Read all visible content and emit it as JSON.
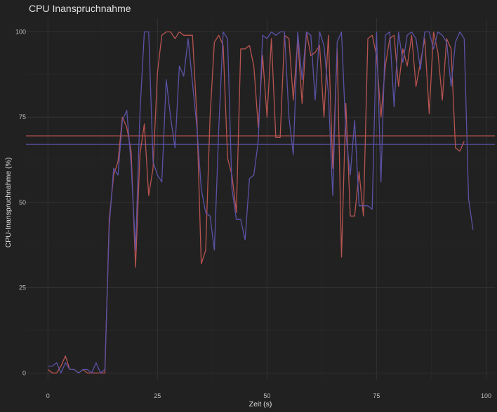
{
  "chart_data": {
    "type": "line",
    "title": "CPU Inanspruchnahme",
    "xlabel": "Zeit (s)",
    "ylabel": "CPU-Inanspruchnahme (%)",
    "xlim": [
      -5,
      102
    ],
    "ylim": [
      -2,
      104
    ],
    "xticks": [
      0,
      25,
      50,
      75,
      100
    ],
    "yticks": [
      0,
      25,
      50,
      75,
      100
    ],
    "grid": true,
    "legend": "none",
    "series": [
      {
        "color": "#b85450",
        "x": [
          0,
          1,
          2,
          3,
          4,
          5,
          6,
          7,
          8,
          9,
          10,
          11,
          12,
          13,
          14,
          15,
          16,
          17,
          18,
          19,
          20,
          21,
          22,
          23,
          24,
          25,
          26,
          27,
          28,
          29,
          30,
          31,
          32,
          33,
          34,
          35,
          36,
          37,
          38,
          39,
          40,
          41,
          42,
          43,
          44,
          45,
          46,
          47,
          48,
          49,
          50,
          51,
          52,
          53,
          54,
          55,
          56,
          57,
          58,
          59,
          60,
          61,
          62,
          63,
          64,
          65,
          66,
          67,
          68,
          69,
          70,
          71,
          72,
          73,
          74,
          75,
          76,
          77,
          78,
          79,
          80,
          81,
          82,
          83,
          84,
          85,
          86,
          87,
          88,
          89,
          90,
          91,
          92,
          93,
          94,
          95
        ],
        "values": [
          1,
          0,
          0,
          2,
          5,
          1,
          1,
          0,
          1,
          0,
          0,
          0,
          0,
          0,
          45,
          58,
          62,
          75,
          72,
          65,
          31,
          64,
          73,
          52,
          60,
          88,
          99,
          100,
          100,
          98,
          100,
          99,
          99,
          99,
          75,
          32,
          36,
          75,
          97,
          99,
          96,
          63,
          58,
          47,
          95,
          95,
          96,
          90,
          72,
          93,
          75,
          98,
          69,
          69,
          99,
          98,
          80,
          98,
          79,
          100,
          93,
          94,
          96,
          75,
          99,
          60,
          95,
          34,
          79,
          46,
          46,
          59,
          46,
          98,
          99,
          93,
          75,
          90,
          98,
          99,
          84,
          95,
          90,
          99,
          84,
          91,
          98,
          76,
          100,
          94,
          80,
          98,
          95,
          66,
          65,
          68
        ]
      },
      {
        "color": "#5a52a6",
        "x": [
          0,
          1,
          2,
          3,
          4,
          5,
          6,
          7,
          8,
          9,
          10,
          11,
          12,
          13,
          14,
          15,
          16,
          17,
          18,
          19,
          20,
          21,
          22,
          23,
          24,
          25,
          26,
          27,
          28,
          29,
          30,
          31,
          32,
          33,
          34,
          35,
          36,
          37,
          38,
          39,
          40,
          41,
          42,
          43,
          44,
          45,
          46,
          47,
          48,
          49,
          50,
          51,
          52,
          53,
          54,
          55,
          56,
          57,
          58,
          59,
          60,
          61,
          62,
          63,
          64,
          65,
          66,
          67,
          68,
          69,
          70,
          71,
          72,
          73,
          74,
          75,
          76,
          77,
          78,
          79,
          80,
          81,
          82,
          83,
          84,
          85,
          86,
          87,
          88,
          89,
          90,
          91,
          92,
          93,
          94,
          95,
          96,
          97
        ],
        "values": [
          2,
          2,
          3,
          0,
          3,
          1,
          1,
          0,
          1,
          1,
          0,
          3,
          0,
          1,
          43,
          60,
          58,
          74,
          77,
          61,
          36,
          76,
          100,
          100,
          62,
          58,
          56,
          86,
          75,
          66,
          90,
          87,
          98,
          85,
          72,
          54,
          47,
          46,
          36,
          72,
          100,
          98,
          54,
          45,
          45,
          39,
          57,
          58,
          68,
          99,
          98,
          100,
          99,
          100,
          100,
          75,
          64,
          100,
          86,
          100,
          99,
          80,
          100,
          96,
          82,
          52,
          97,
          100,
          70,
          58,
          74,
          49,
          49,
          49,
          48,
          100,
          56,
          99,
          100,
          78,
          100,
          91,
          99,
          100,
          98,
          89,
          100,
          100,
          95,
          100,
          99,
          97,
          84,
          97,
          100,
          98,
          51,
          42
        ]
      }
    ],
    "hlines": [
      {
        "y": 69.5,
        "color": "#b85450"
      },
      {
        "y": 67,
        "color": "#5a52a6"
      }
    ]
  }
}
